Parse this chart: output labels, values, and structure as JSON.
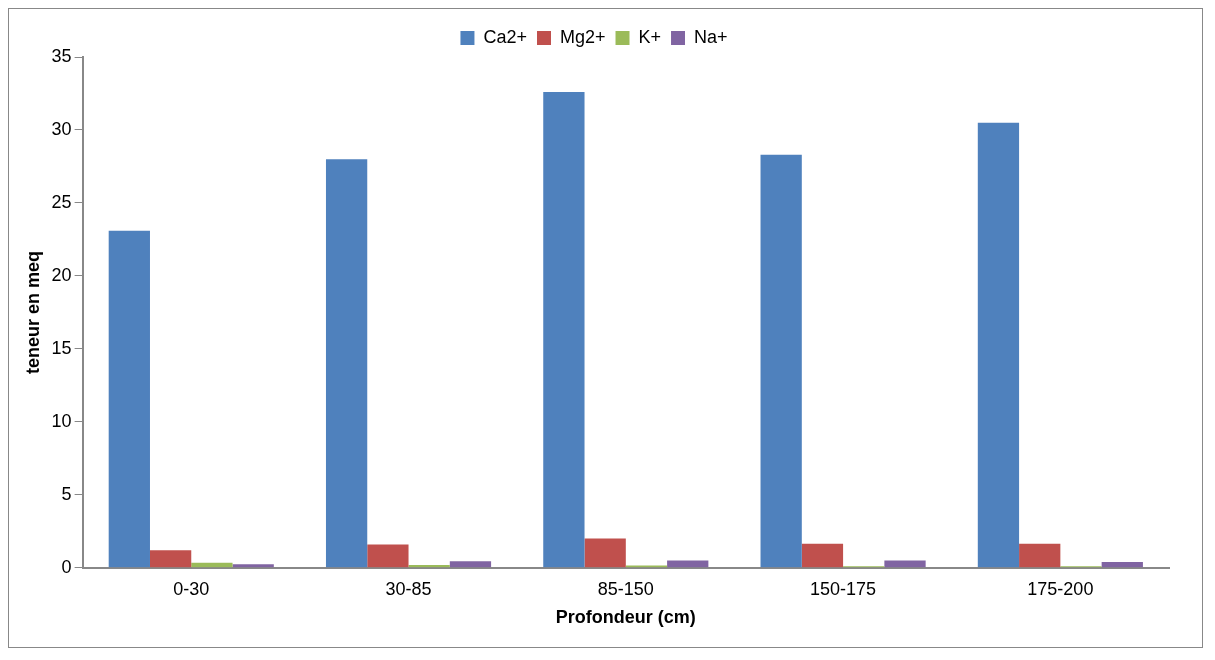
{
  "chart_data": {
    "type": "bar",
    "xlabel": "Profondeur (cm)",
    "ylabel": "teneur en meq",
    "categories": [
      "0-30",
      "30-85",
      "85-150",
      "150-175",
      "175-200"
    ],
    "series": [
      {
        "name": "Ca2+",
        "color": "#4f81bd",
        "values": [
          23.1,
          28.0,
          32.6,
          28.3,
          30.5
        ]
      },
      {
        "name": "Mg2+",
        "color": "#c0504d",
        "values": [
          1.2,
          1.6,
          2.0,
          1.65,
          1.65
        ]
      },
      {
        "name": "K+",
        "color": "#9bbb59",
        "values": [
          0.35,
          0.2,
          0.15,
          0.1,
          0.1
        ]
      },
      {
        "name": "Na+",
        "color": "#8064a2",
        "values": [
          0.25,
          0.45,
          0.5,
          0.5,
          0.4
        ]
      }
    ],
    "ylim": [
      0,
      35
    ],
    "yticks": [
      0,
      5,
      10,
      15,
      20,
      25,
      30,
      35
    ],
    "grid": false,
    "legend": "top"
  }
}
